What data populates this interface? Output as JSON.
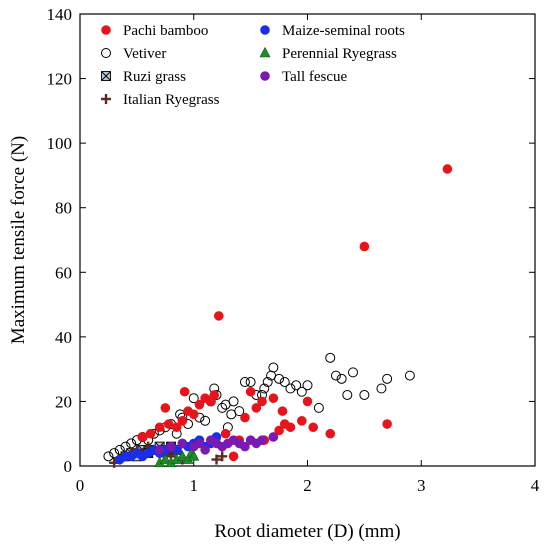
{
  "chart_data": {
    "type": "scatter",
    "xlabel": "Root diameter (D) (mm)",
    "ylabel": "Maximum tensile force (N)",
    "xlim": [
      0,
      4
    ],
    "ylim": [
      0,
      140
    ],
    "x_ticks": [
      0,
      1,
      2,
      3,
      4
    ],
    "y_ticks": [
      0,
      20,
      40,
      60,
      80,
      100,
      120,
      140
    ],
    "grid": false,
    "legend_position": "top-left",
    "series": [
      {
        "name": "Pachi bamboo",
        "marker": "circle-filled",
        "color": "#e8141c",
        "points": [
          [
            0.55,
            9
          ],
          [
            0.62,
            10
          ],
          [
            0.7,
            12
          ],
          [
            0.75,
            18
          ],
          [
            0.78,
            13
          ],
          [
            0.85,
            12
          ],
          [
            0.9,
            14
          ],
          [
            0.92,
            23
          ],
          [
            0.95,
            17
          ],
          [
            1.0,
            16
          ],
          [
            1.05,
            19
          ],
          [
            1.1,
            21
          ],
          [
            1.15,
            20
          ],
          [
            1.18,
            22
          ],
          [
            1.22,
            46.5
          ],
          [
            1.28,
            10
          ],
          [
            1.35,
            3
          ],
          [
            1.4,
            8
          ],
          [
            1.45,
            15
          ],
          [
            1.5,
            23
          ],
          [
            1.55,
            18
          ],
          [
            1.6,
            20
          ],
          [
            1.62,
            8
          ],
          [
            1.7,
            21
          ],
          [
            1.75,
            11
          ],
          [
            1.78,
            17
          ],
          [
            1.8,
            13
          ],
          [
            1.85,
            12
          ],
          [
            1.95,
            14
          ],
          [
            2.0,
            20
          ],
          [
            2.05,
            12
          ],
          [
            2.2,
            10
          ],
          [
            2.5,
            68
          ],
          [
            2.7,
            13
          ],
          [
            3.23,
            92
          ]
        ]
      },
      {
        "name": "Vetiver",
        "marker": "circle-open",
        "color": "#000000",
        "points": [
          [
            0.25,
            3
          ],
          [
            0.3,
            4
          ],
          [
            0.35,
            5
          ],
          [
            0.4,
            6
          ],
          [
            0.45,
            7
          ],
          [
            0.5,
            8
          ],
          [
            0.55,
            9
          ],
          [
            0.6,
            8
          ],
          [
            0.65,
            10
          ],
          [
            0.7,
            11
          ],
          [
            0.75,
            12
          ],
          [
            0.8,
            13
          ],
          [
            0.85,
            10
          ],
          [
            0.88,
            16
          ],
          [
            0.9,
            15
          ],
          [
            0.95,
            13
          ],
          [
            1.0,
            21
          ],
          [
            1.05,
            15
          ],
          [
            1.1,
            14
          ],
          [
            1.15,
            20
          ],
          [
            1.18,
            24
          ],
          [
            1.2,
            22
          ],
          [
            1.25,
            18
          ],
          [
            1.28,
            19
          ],
          [
            1.3,
            12
          ],
          [
            1.33,
            16
          ],
          [
            1.35,
            20
          ],
          [
            1.4,
            17
          ],
          [
            1.45,
            26
          ],
          [
            1.5,
            26
          ],
          [
            1.55,
            22
          ],
          [
            1.6,
            22
          ],
          [
            1.62,
            24
          ],
          [
            1.65,
            26
          ],
          [
            1.68,
            28
          ],
          [
            1.7,
            30.5
          ],
          [
            1.75,
            27
          ],
          [
            1.8,
            26
          ],
          [
            1.85,
            24
          ],
          [
            1.9,
            25
          ],
          [
            1.95,
            23
          ],
          [
            2.0,
            25
          ],
          [
            2.1,
            18
          ],
          [
            2.2,
            33.5
          ],
          [
            2.25,
            28
          ],
          [
            2.3,
            27
          ],
          [
            2.35,
            22
          ],
          [
            2.4,
            29
          ],
          [
            2.5,
            22
          ],
          [
            2.65,
            24
          ],
          [
            2.7,
            27
          ],
          [
            2.9,
            28
          ]
        ]
      },
      {
        "name": "Ruzi grass",
        "marker": "square-x",
        "color": "#000000",
        "points": [
          [
            0.4,
            3
          ],
          [
            0.45,
            4
          ],
          [
            0.5,
            3
          ],
          [
            0.55,
            5
          ],
          [
            0.6,
            4
          ],
          [
            0.65,
            5
          ],
          [
            0.7,
            6
          ],
          [
            0.75,
            5
          ],
          [
            0.8,
            6
          ],
          [
            0.85,
            5
          ]
        ]
      },
      {
        "name": "Italian Ryegrass",
        "marker": "plus",
        "color": "#5c2a1e",
        "points": [
          [
            0.3,
            1
          ],
          [
            0.35,
            2
          ],
          [
            0.4,
            3
          ],
          [
            0.45,
            4
          ],
          [
            0.5,
            5
          ],
          [
            0.55,
            4
          ],
          [
            0.6,
            6
          ],
          [
            0.65,
            5
          ],
          [
            0.7,
            4
          ],
          [
            0.75,
            3
          ],
          [
            0.8,
            3
          ],
          [
            0.9,
            2
          ],
          [
            1.2,
            2
          ],
          [
            1.25,
            3
          ]
        ]
      },
      {
        "name": "Maize-seminal roots",
        "marker": "circle-filled",
        "color": "#1a2ee8",
        "points": [
          [
            0.35,
            2
          ],
          [
            0.4,
            3
          ],
          [
            0.45,
            3
          ],
          [
            0.5,
            4
          ],
          [
            0.55,
            3
          ],
          [
            0.6,
            4
          ],
          [
            0.65,
            5
          ],
          [
            0.7,
            4
          ],
          [
            0.75,
            5
          ],
          [
            0.8,
            6
          ],
          [
            0.85,
            5
          ],
          [
            0.9,
            7
          ],
          [
            0.95,
            6
          ],
          [
            1.0,
            7
          ],
          [
            1.05,
            8
          ],
          [
            1.1,
            6
          ],
          [
            1.15,
            7
          ],
          [
            1.2,
            9
          ]
        ]
      },
      {
        "name": "Perennial Ryegrass",
        "marker": "triangle",
        "color": "#1e8a2a",
        "points": [
          [
            0.7,
            1
          ],
          [
            0.75,
            2
          ],
          [
            0.8,
            1
          ],
          [
            0.85,
            2
          ],
          [
            0.9,
            3
          ],
          [
            0.95,
            2
          ],
          [
            0.98,
            4
          ],
          [
            1.0,
            3
          ]
        ]
      },
      {
        "name": "Tall fescue",
        "marker": "circle-filled",
        "color": "#7a1ab0",
        "points": [
          [
            0.7,
            5
          ],
          [
            0.8,
            6
          ],
          [
            0.9,
            7
          ],
          [
            1.0,
            6
          ],
          [
            1.05,
            7
          ],
          [
            1.1,
            5
          ],
          [
            1.15,
            8
          ],
          [
            1.2,
            7
          ],
          [
            1.25,
            6
          ],
          [
            1.3,
            7
          ],
          [
            1.35,
            8
          ],
          [
            1.4,
            7
          ],
          [
            1.45,
            6
          ],
          [
            1.5,
            8
          ],
          [
            1.55,
            7
          ],
          [
            1.6,
            8
          ],
          [
            1.7,
            9
          ]
        ]
      }
    ]
  }
}
